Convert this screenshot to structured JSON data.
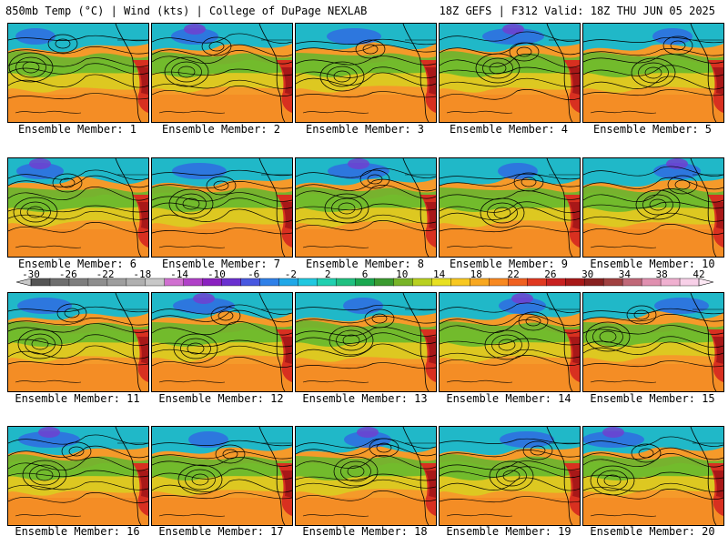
{
  "header": {
    "left": "850mb Temp (°C) | Wind (kts) | College of DuPage NEXLAB",
    "right": "18Z GEFS | F312 Valid: 18Z THU JUN 05 2025"
  },
  "members": [
    {
      "label": "Ensemble Member: 1"
    },
    {
      "label": "Ensemble Member: 2"
    },
    {
      "label": "Ensemble Member: 3"
    },
    {
      "label": "Ensemble Member: 4"
    },
    {
      "label": "Ensemble Member: 5"
    },
    {
      "label": "Ensemble Member: 6"
    },
    {
      "label": "Ensemble Member: 7"
    },
    {
      "label": "Ensemble Member: 8"
    },
    {
      "label": "Ensemble Member: 9"
    },
    {
      "label": "Ensemble Member: 10"
    },
    {
      "label": "Ensemble Member: 11"
    },
    {
      "label": "Ensemble Member: 12"
    },
    {
      "label": "Ensemble Member: 13"
    },
    {
      "label": "Ensemble Member: 14"
    },
    {
      "label": "Ensemble Member: 15"
    },
    {
      "label": "Ensemble Member: 16"
    },
    {
      "label": "Ensemble Member: 17"
    },
    {
      "label": "Ensemble Member: 18"
    },
    {
      "label": "Ensemble Member: 19"
    },
    {
      "label": "Ensemble Member: 20"
    }
  ],
  "colorbar": {
    "ticks": [
      "-30",
      "-26",
      "-22",
      "-18",
      "-14",
      "-10",
      "-6",
      "-2",
      "2",
      "6",
      "10",
      "14",
      "18",
      "22",
      "26",
      "30",
      "34",
      "38",
      "42"
    ],
    "colors": [
      "#555555",
      "#6e6e6e",
      "#7e7e7e",
      "#8e8e8e",
      "#9e9e9e",
      "#b0b0b0",
      "#c8c8c8",
      "#d070d0",
      "#b040c8",
      "#8a20c0",
      "#6a30d0",
      "#4858e0",
      "#2f80e8",
      "#20a8e8",
      "#20c8e0",
      "#20d0b0",
      "#20c080",
      "#1aa850",
      "#3a9a30",
      "#78b428",
      "#b8d020",
      "#e8e020",
      "#f8c820",
      "#f8a820",
      "#f88820",
      "#f06020",
      "#e03820",
      "#c82020",
      "#a81818",
      "#882020",
      "#a04040",
      "#c06878",
      "#e090b0",
      "#f0b0d0",
      "#f8d0e8"
    ]
  }
}
